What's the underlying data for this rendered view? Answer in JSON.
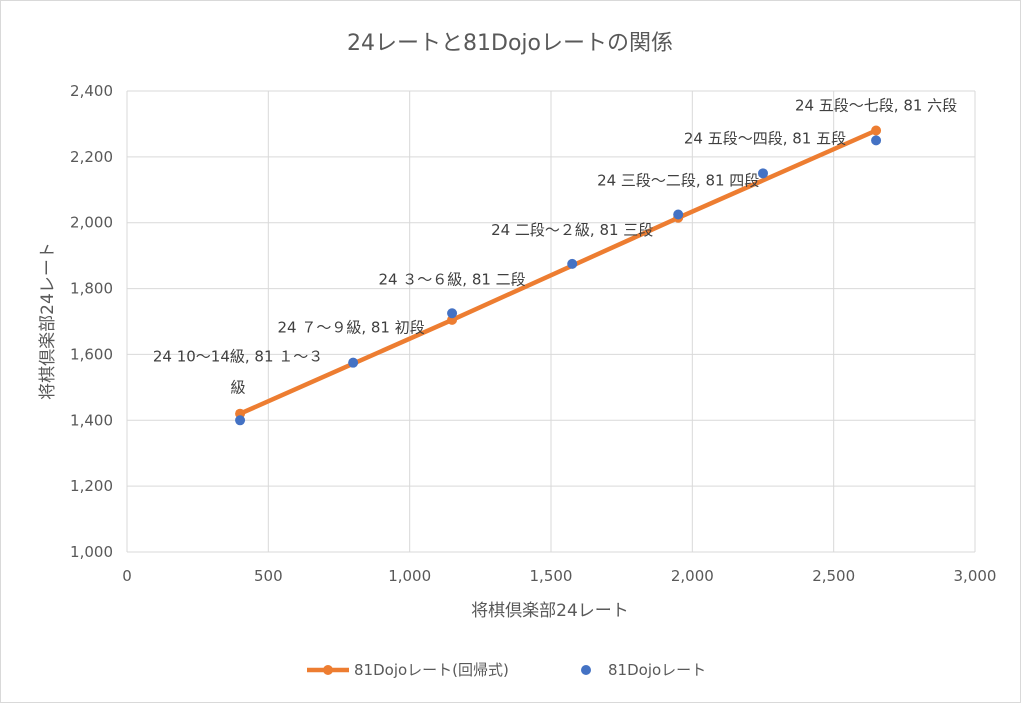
{
  "chart_data": {
    "type": "scatter",
    "title": "24レートと81Dojoレートの関係",
    "xlabel": "将棋倶楽部24レート",
    "ylabel": "将棋倶楽部24レート",
    "xlim": [
      0,
      3000
    ],
    "ylim": [
      1000,
      2400
    ],
    "x_ticks": [
      0,
      500,
      1000,
      1500,
      2000,
      2500,
      3000
    ],
    "x_tick_labels": [
      "0",
      "500",
      "1,000",
      "1,500",
      "2,000",
      "2,500",
      "3,000"
    ],
    "y_ticks": [
      1000,
      1200,
      1400,
      1600,
      1800,
      2000,
      2200,
      2400
    ],
    "y_tick_labels": [
      "1,000",
      "1,200",
      "1,400",
      "1,600",
      "1,800",
      "2,000",
      "2,200",
      "2,400"
    ],
    "grid": true,
    "legend_position": "bottom",
    "series": [
      {
        "name": "81Dojoレート(回帰式)",
        "kind": "line-with-markers",
        "color": "#ED7D31",
        "points": [
          {
            "x": 400,
            "y": 1420
          },
          {
            "x": 1150,
            "y": 1705
          },
          {
            "x": 1950,
            "y": 2015
          },
          {
            "x": 2650,
            "y": 2280
          }
        ]
      },
      {
        "name": "81Dojoレート",
        "kind": "scatter",
        "color": "#4472C4",
        "points": [
          {
            "x": 400,
            "y": 1400
          },
          {
            "x": 800,
            "y": 1575
          },
          {
            "x": 1150,
            "y": 1725
          },
          {
            "x": 1575,
            "y": 1875
          },
          {
            "x": 1950,
            "y": 2025
          },
          {
            "x": 2250,
            "y": 2150
          },
          {
            "x": 2650,
            "y": 2250
          }
        ]
      }
    ],
    "annotations": [
      {
        "x": 400,
        "y": 1420,
        "lines": [
          "24 10～14級, 81 １～３",
          "級"
        ]
      },
      {
        "x": 800,
        "y": 1575,
        "lines": [
          "24 ７～９級, 81 初段"
        ]
      },
      {
        "x": 1150,
        "y": 1725,
        "lines": [
          "24 ３～６級, 81 二段"
        ]
      },
      {
        "x": 1575,
        "y": 1875,
        "lines": [
          "24 二段～２級, 81 三段"
        ]
      },
      {
        "x": 1950,
        "y": 2025,
        "lines": [
          "24 三段～二段, 81 四段"
        ]
      },
      {
        "x": 2250,
        "y": 2150,
        "lines": [
          "24 五段～四段, 81 五段"
        ]
      },
      {
        "x": 2650,
        "y": 2280,
        "lines": [
          "24 五段～七段, 81 六段"
        ]
      }
    ]
  }
}
